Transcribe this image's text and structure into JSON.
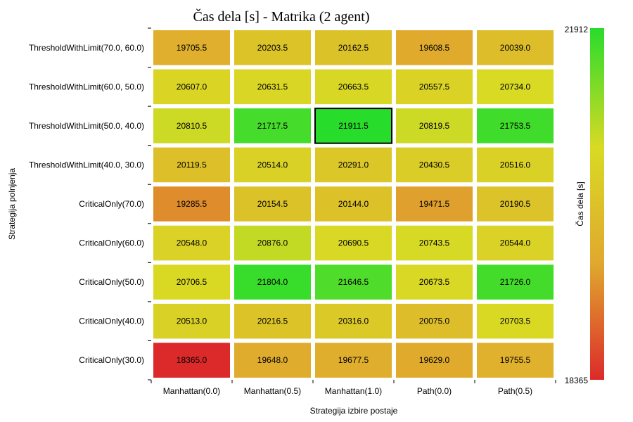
{
  "chart_data": {
    "type": "heatmap",
    "title": "Čas dela [s] - Matrika (2 agent)",
    "xlabel": "Strategija izbire postaje",
    "ylabel": "Strategija polnjenja",
    "colorbar_label": "Čas dela [s]",
    "colorbar_min": 18365,
    "colorbar_max": 21912,
    "colormap": [
      "#dc2a2a",
      "#e0a82e",
      "#d9da24",
      "#28dc2c"
    ],
    "highlight_color": "#000000",
    "x_categories": [
      "Manhattan(0.0)",
      "Manhattan(0.5)",
      "Manhattan(1.0)",
      "Path(0.0)",
      "Path(0.5)"
    ],
    "y_categories": [
      "ThresholdWithLimit(70.0, 60.0)",
      "ThresholdWithLimit(60.0, 50.0)",
      "ThresholdWithLimit(50.0, 40.0)",
      "ThresholdWithLimit(40.0, 30.0)",
      "CriticalOnly(70.0)",
      "CriticalOnly(60.0)",
      "CriticalOnly(50.0)",
      "CriticalOnly(40.0)",
      "CriticalOnly(30.0)"
    ],
    "values": [
      [
        19705.5,
        20203.5,
        20162.5,
        19608.5,
        20039.0
      ],
      [
        20607.0,
        20631.5,
        20663.5,
        20557.5,
        20734.0
      ],
      [
        20810.5,
        21717.5,
        21911.5,
        20819.5,
        21753.5
      ],
      [
        20119.5,
        20514.0,
        20291.0,
        20430.5,
        20516.0
      ],
      [
        19285.5,
        20154.5,
        20144.0,
        19471.5,
        20190.5
      ],
      [
        20548.0,
        20876.0,
        20690.5,
        20743.5,
        20544.0
      ],
      [
        20706.5,
        21804.0,
        21646.5,
        20673.5,
        21726.0
      ],
      [
        20513.0,
        20216.5,
        20316.0,
        20075.0,
        20703.5
      ],
      [
        18365.0,
        19648.0,
        19677.5,
        19629.0,
        19755.5
      ]
    ],
    "highlight_cell": [
      2,
      2
    ]
  }
}
